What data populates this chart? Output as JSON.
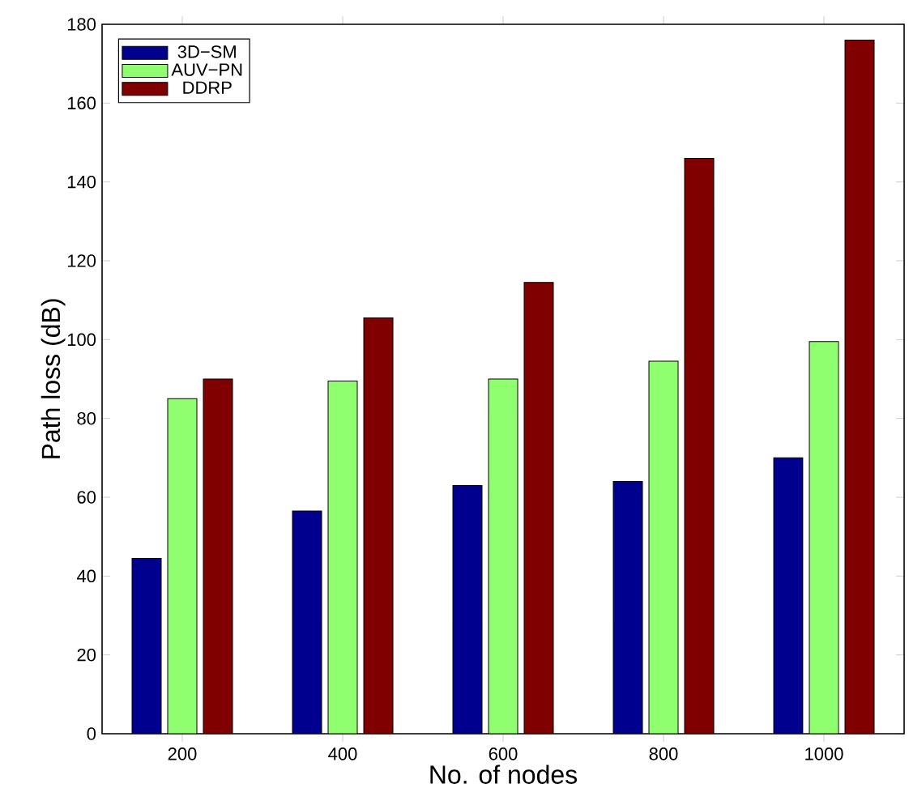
{
  "chart_data": {
    "type": "bar",
    "xlabel": "No. of nodes",
    "ylabel": "Path loss (dB)",
    "categories": [
      "200",
      "400",
      "600",
      "800",
      "1000"
    ],
    "series": [
      {
        "name": "3D−SM",
        "color": "#00008f",
        "values": [
          44.5,
          56.5,
          63,
          64,
          70
        ]
      },
      {
        "name": "AUV−PN",
        "color": "#8fff6f",
        "values": [
          85,
          89.5,
          90,
          94.5,
          99.5
        ]
      },
      {
        "name": "DDRP",
        "color": "#800000",
        "values": [
          90,
          105.5,
          114.5,
          146,
          176
        ]
      }
    ],
    "ylim": [
      0,
      180
    ],
    "yticks": [
      0,
      20,
      40,
      60,
      80,
      100,
      120,
      140,
      160,
      180
    ],
    "legend": "top left"
  }
}
